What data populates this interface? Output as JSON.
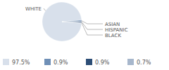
{
  "chart_data": {
    "type": "pie",
    "categories": [
      "WHITE",
      "ASIAN",
      "HISPANIC",
      "BLACK"
    ],
    "values": [
      97.5,
      0.9,
      0.9,
      0.7
    ],
    "value_labels": [
      "97.5%",
      "0.9%",
      "0.9%",
      "0.7%"
    ],
    "colors": [
      "#d8e0eb",
      "#6f8fb6",
      "#2d4e76",
      "#a7b7cc"
    ]
  }
}
